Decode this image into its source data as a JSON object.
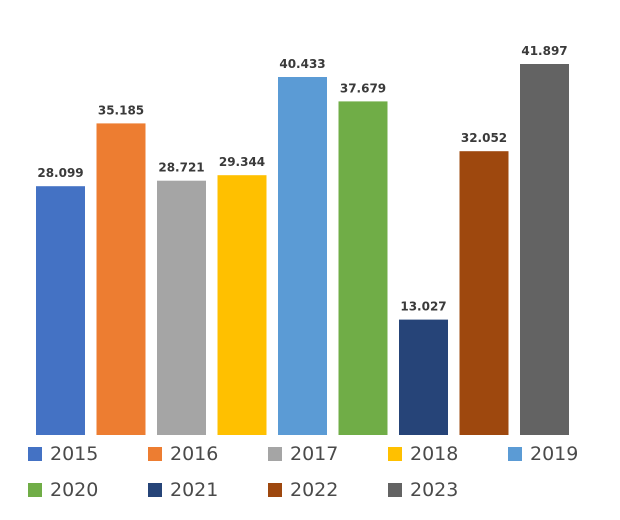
{
  "chart_data": {
    "type": "bar",
    "title": "",
    "xlabel": "",
    "ylabel": "",
    "ylim": [
      0,
      43
    ],
    "grid": false,
    "legend_position": "bottom",
    "series": [
      {
        "name": "2015",
        "value": 28.099,
        "label": "28.099",
        "color": "#4472C4"
      },
      {
        "name": "2016",
        "value": 35.185,
        "label": "35.185",
        "color": "#ED7D31"
      },
      {
        "name": "2017",
        "value": 28.721,
        "label": "28.721",
        "color": "#A5A5A5"
      },
      {
        "name": "2018",
        "value": 29.344,
        "label": "29.344",
        "color": "#FFC000"
      },
      {
        "name": "2019",
        "value": 40.433,
        "label": "40.433",
        "color": "#5B9BD5"
      },
      {
        "name": "2020",
        "value": 37.679,
        "label": "37.679",
        "color": "#70AD47"
      },
      {
        "name": "2021",
        "value": 13.027,
        "label": "13.027",
        "color": "#264478"
      },
      {
        "name": "2022",
        "value": 32.052,
        "label": "32.052",
        "color": "#9E480E"
      },
      {
        "name": "2023",
        "value": 41.897,
        "label": "41.897",
        "color": "#636363"
      }
    ]
  }
}
